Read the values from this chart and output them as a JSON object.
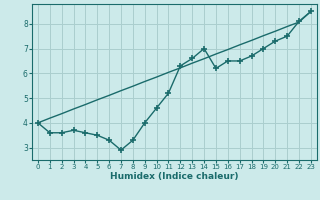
{
  "x": [
    0,
    1,
    2,
    3,
    4,
    5,
    6,
    7,
    8,
    9,
    10,
    11,
    12,
    13,
    14,
    15,
    16,
    17,
    18,
    19,
    20,
    21,
    22,
    23
  ],
  "y_zigzag": [
    4.0,
    3.6,
    3.6,
    3.7,
    3.6,
    3.5,
    3.3,
    2.9,
    3.3,
    4.0,
    4.6,
    5.2,
    6.3,
    6.6,
    7.0,
    6.2,
    6.5,
    6.5,
    6.7,
    7.0,
    7.3,
    7.5,
    8.1,
    8.5
  ],
  "y_trend": [
    4.0,
    4.19,
    4.37,
    4.56,
    4.74,
    4.93,
    5.11,
    5.3,
    5.48,
    5.67,
    5.85,
    6.04,
    6.22,
    6.41,
    6.59,
    6.78,
    6.96,
    7.15,
    7.33,
    7.52,
    7.7,
    7.89,
    8.07,
    8.5
  ],
  "line_color": "#1a6b6b",
  "bg_color": "#cceaea",
  "grid_color": "#aacece",
  "xlabel": "Humidex (Indice chaleur)",
  "ylim": [
    2.5,
    8.8
  ],
  "xlim": [
    -0.5,
    23.5
  ],
  "yticks": [
    3,
    4,
    5,
    6,
    7,
    8
  ],
  "xticks": [
    0,
    1,
    2,
    3,
    4,
    5,
    6,
    7,
    8,
    9,
    10,
    11,
    12,
    13,
    14,
    15,
    16,
    17,
    18,
    19,
    20,
    21,
    22,
    23
  ],
  "marker": "+",
  "marker_size": 5,
  "linewidth": 1.0
}
